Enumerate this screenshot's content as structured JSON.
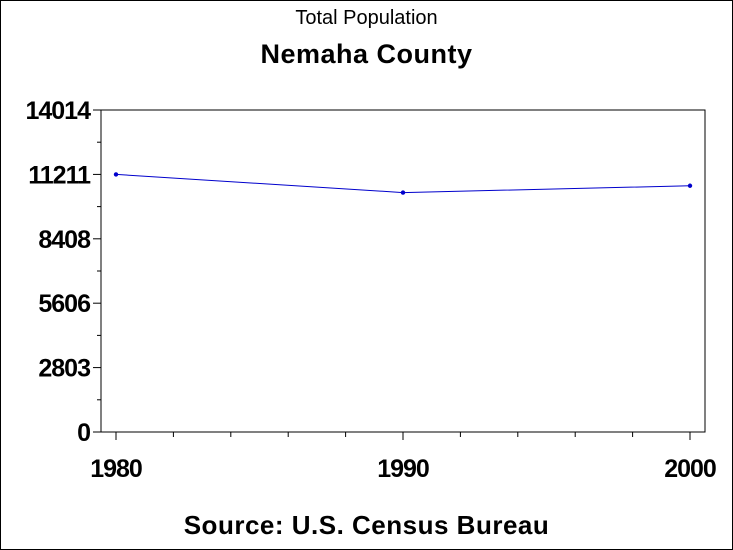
{
  "chart_data": {
    "type": "line",
    "subtitle": "Total Population",
    "title": "Nemaha County",
    "source": "Source: U.S. Census Bureau",
    "x": [
      1980,
      1990,
      2000
    ],
    "x_tick_labels": [
      "1980",
      "1990",
      "2000"
    ],
    "series": [
      {
        "values": [
          11211,
          10420,
          10717
        ],
        "color": "#0000cc"
      }
    ],
    "y_ticks": [
      0,
      2803,
      5606,
      8408,
      11211,
      14014
    ],
    "y_tick_labels": [
      "0",
      "2803",
      "5606",
      "8408",
      "11211",
      "14014"
    ],
    "xlim": [
      1980,
      2000
    ],
    "ylim": [
      0,
      14014
    ],
    "grid": false,
    "legend": "none"
  }
}
